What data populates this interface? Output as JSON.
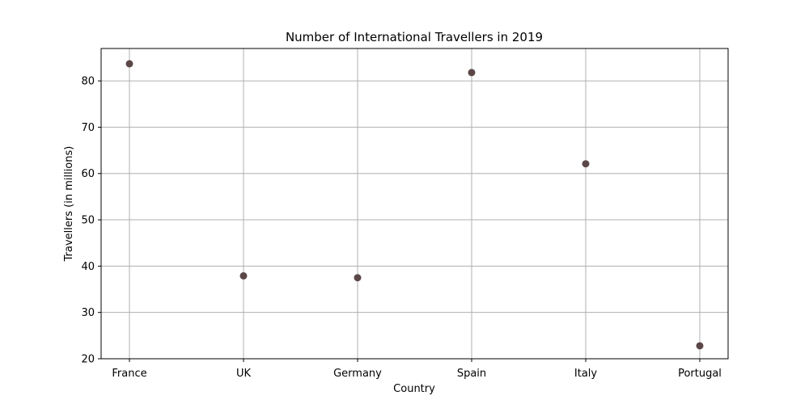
{
  "chart_data": {
    "type": "scatter",
    "title": "Number of International Travellers in 2019",
    "xlabel": "Country",
    "ylabel": "Travellers (in millions)",
    "categories": [
      "France",
      "UK",
      "Germany",
      "Spain",
      "Italy",
      "Portugal"
    ],
    "values": [
      83.7,
      37.9,
      37.5,
      81.8,
      62.1,
      22.8
    ],
    "ylim": [
      20,
      87
    ],
    "yticks": [
      20,
      30,
      40,
      50,
      60,
      70,
      80
    ],
    "grid": true,
    "marker_color": "#5b4748",
    "grid_color": "#b0b0b0"
  }
}
